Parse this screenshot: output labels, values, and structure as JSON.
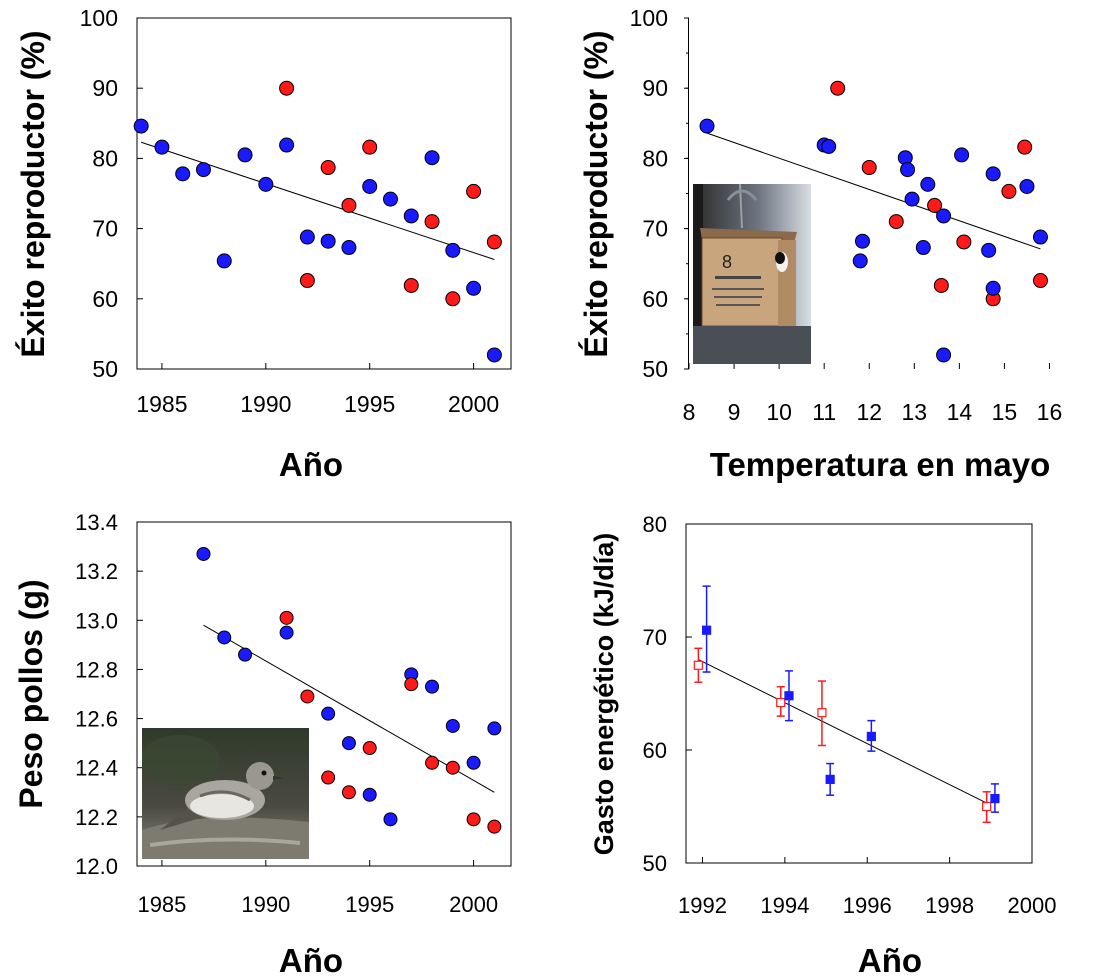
{
  "chart_data": [
    {
      "type": "scatter",
      "xlabel": "Año",
      "ylabel": "Éxito reproductor (%)",
      "xlim": [
        1983.8,
        2001.8
      ],
      "ylim": [
        50,
        100
      ],
      "xticks": [
        1985,
        1990,
        1995,
        2000
      ],
      "yticks": [
        50,
        60,
        70,
        80,
        90,
        100
      ],
      "colors": {
        "blue": "#1a1aff",
        "red": "#ff1a1a"
      },
      "points": [
        {
          "x": 1984,
          "y": 84.6,
          "c": "blue"
        },
        {
          "x": 1985,
          "y": 81.6,
          "c": "blue"
        },
        {
          "x": 1986,
          "y": 77.8,
          "c": "blue"
        },
        {
          "x": 1987,
          "y": 78.4,
          "c": "blue"
        },
        {
          "x": 1988,
          "y": 65.4,
          "c": "blue"
        },
        {
          "x": 1989,
          "y": 80.5,
          "c": "blue"
        },
        {
          "x": 1990,
          "y": 76.3,
          "c": "blue"
        },
        {
          "x": 1991,
          "y": 81.9,
          "c": "blue"
        },
        {
          "x": 1991,
          "y": 90.0,
          "c": "red"
        },
        {
          "x": 1992,
          "y": 68.8,
          "c": "blue"
        },
        {
          "x": 1992,
          "y": 62.6,
          "c": "red"
        },
        {
          "x": 1993,
          "y": 68.2,
          "c": "blue"
        },
        {
          "x": 1993,
          "y": 78.7,
          "c": "red"
        },
        {
          "x": 1994,
          "y": 67.3,
          "c": "blue"
        },
        {
          "x": 1994,
          "y": 73.3,
          "c": "red"
        },
        {
          "x": 1995,
          "y": 76.0,
          "c": "blue"
        },
        {
          "x": 1995,
          "y": 81.6,
          "c": "red"
        },
        {
          "x": 1996,
          "y": 74.2,
          "c": "blue"
        },
        {
          "x": 1997,
          "y": 71.8,
          "c": "blue"
        },
        {
          "x": 1997,
          "y": 61.9,
          "c": "red"
        },
        {
          "x": 1998,
          "y": 80.1,
          "c": "blue"
        },
        {
          "x": 1998,
          "y": 71.0,
          "c": "red"
        },
        {
          "x": 1999,
          "y": 66.9,
          "c": "blue"
        },
        {
          "x": 1999,
          "y": 60.0,
          "c": "red"
        },
        {
          "x": 2000,
          "y": 61.5,
          "c": "blue"
        },
        {
          "x": 2000,
          "y": 75.3,
          "c": "red"
        },
        {
          "x": 2001,
          "y": 52.0,
          "c": "blue"
        },
        {
          "x": 2001,
          "y": 68.1,
          "c": "red"
        }
      ],
      "trendline": [
        [
          1984,
          82.3
        ],
        [
          2001,
          65.6
        ]
      ]
    },
    {
      "type": "scatter",
      "xlabel": "Temperatura en mayo",
      "ylabel": "Éxito reproductor (%)",
      "xlim": [
        8,
        16.3
      ],
      "ylim": [
        50,
        100
      ],
      "xticks": [
        8,
        9,
        10,
        11,
        12,
        13,
        14,
        15,
        16
      ],
      "yticks": [
        50,
        60,
        70,
        80,
        90,
        100
      ],
      "inset_photo": "nest-box-with-bird",
      "colors": {
        "blue": "#1a1aff",
        "red": "#ff1a1a"
      },
      "points": [
        {
          "x": 8.4,
          "y": 84.6,
          "c": "blue"
        },
        {
          "x": 11.0,
          "y": 81.9,
          "c": "blue"
        },
        {
          "x": 11.1,
          "y": 81.7,
          "c": "blue"
        },
        {
          "x": 11.3,
          "y": 90.0,
          "c": "red"
        },
        {
          "x": 11.8,
          "y": 65.4,
          "c": "blue"
        },
        {
          "x": 11.85,
          "y": 68.2,
          "c": "blue"
        },
        {
          "x": 12.0,
          "y": 78.7,
          "c": "red"
        },
        {
          "x": 12.6,
          "y": 71.0,
          "c": "red"
        },
        {
          "x": 12.8,
          "y": 80.1,
          "c": "blue"
        },
        {
          "x": 12.85,
          "y": 78.4,
          "c": "blue"
        },
        {
          "x": 12.95,
          "y": 74.2,
          "c": "blue"
        },
        {
          "x": 13.2,
          "y": 67.3,
          "c": "blue"
        },
        {
          "x": 13.3,
          "y": 76.3,
          "c": "blue"
        },
        {
          "x": 13.45,
          "y": 73.3,
          "c": "red"
        },
        {
          "x": 13.6,
          "y": 61.9,
          "c": "red"
        },
        {
          "x": 13.65,
          "y": 71.8,
          "c": "blue"
        },
        {
          "x": 13.65,
          "y": 52.0,
          "c": "blue"
        },
        {
          "x": 14.05,
          "y": 80.5,
          "c": "blue"
        },
        {
          "x": 14.1,
          "y": 68.1,
          "c": "red"
        },
        {
          "x": 14.65,
          "y": 66.9,
          "c": "blue"
        },
        {
          "x": 14.75,
          "y": 60.0,
          "c": "red"
        },
        {
          "x": 14.75,
          "y": 61.5,
          "c": "blue"
        },
        {
          "x": 14.75,
          "y": 77.8,
          "c": "blue"
        },
        {
          "x": 15.1,
          "y": 75.3,
          "c": "red"
        },
        {
          "x": 15.45,
          "y": 81.6,
          "c": "red"
        },
        {
          "x": 15.5,
          "y": 76.0,
          "c": "blue"
        },
        {
          "x": 15.8,
          "y": 68.8,
          "c": "blue"
        },
        {
          "x": 15.8,
          "y": 62.6,
          "c": "red"
        }
      ],
      "trendline": [
        [
          8.4,
          83.6
        ],
        [
          15.8,
          67.1
        ]
      ]
    },
    {
      "type": "scatter",
      "xlabel": "Año",
      "ylabel": "Peso pollos (g)",
      "xlim": [
        1983.8,
        2001.8
      ],
      "ylim": [
        12.0,
        13.4
      ],
      "xticks": [
        1985,
        1990,
        1995,
        2000
      ],
      "yticks": [
        "12.0",
        "12.2",
        "12.4",
        "12.6",
        "12.8",
        "13.0",
        "13.2",
        "13.4"
      ],
      "inset_photo": "flycatcher-bird",
      "colors": {
        "blue": "#1a1aff",
        "red": "#ff1a1a"
      },
      "points": [
        {
          "x": 1987,
          "y": 13.27,
          "c": "blue"
        },
        {
          "x": 1988,
          "y": 12.93,
          "c": "blue"
        },
        {
          "x": 1989,
          "y": 12.86,
          "c": "blue"
        },
        {
          "x": 1991,
          "y": 13.01,
          "c": "red"
        },
        {
          "x": 1991,
          "y": 12.95,
          "c": "blue"
        },
        {
          "x": 1992,
          "y": 12.69,
          "c": "red"
        },
        {
          "x": 1993,
          "y": 12.62,
          "c": "blue"
        },
        {
          "x": 1993,
          "y": 12.36,
          "c": "red"
        },
        {
          "x": 1994,
          "y": 12.5,
          "c": "blue"
        },
        {
          "x": 1994,
          "y": 12.3,
          "c": "red"
        },
        {
          "x": 1995,
          "y": 12.48,
          "c": "red"
        },
        {
          "x": 1995,
          "y": 12.29,
          "c": "blue"
        },
        {
          "x": 1996,
          "y": 12.19,
          "c": "blue"
        },
        {
          "x": 1997,
          "y": 12.78,
          "c": "blue"
        },
        {
          "x": 1997,
          "y": 12.74,
          "c": "red"
        },
        {
          "x": 1998,
          "y": 12.73,
          "c": "blue"
        },
        {
          "x": 1998,
          "y": 12.42,
          "c": "red"
        },
        {
          "x": 1999,
          "y": 12.57,
          "c": "blue"
        },
        {
          "x": 1999,
          "y": 12.4,
          "c": "red"
        },
        {
          "x": 2000,
          "y": 12.42,
          "c": "blue"
        },
        {
          "x": 2000,
          "y": 12.19,
          "c": "red"
        },
        {
          "x": 2001,
          "y": 12.56,
          "c": "blue"
        },
        {
          "x": 2001,
          "y": 12.16,
          "c": "red"
        }
      ],
      "trendline": [
        [
          1987,
          12.98
        ],
        [
          2001,
          12.3
        ]
      ]
    },
    {
      "type": "scatter",
      "xlabel": "Año",
      "ylabel": "Gasto energético (kJ/día)",
      "xlim": [
        1991.6,
        2000
      ],
      "ylim": [
        50,
        80
      ],
      "xticks": [
        1992,
        1994,
        1996,
        1998,
        2000
      ],
      "yticks": [
        50,
        60,
        70,
        80
      ],
      "colors": {
        "blue": "#1a1aff",
        "red": "#ff1a1a"
      },
      "points": [
        {
          "x": 1991.9,
          "y": 67.5,
          "lo": 66.0,
          "hi": 69.0,
          "c": "red",
          "marker": "open-square"
        },
        {
          "x": 1992.1,
          "y": 70.6,
          "lo": 66.9,
          "hi": 74.5,
          "c": "blue",
          "marker": "filled-square"
        },
        {
          "x": 1993.9,
          "y": 64.2,
          "lo": 63.0,
          "hi": 65.6,
          "c": "red",
          "marker": "open-square"
        },
        {
          "x": 1994.1,
          "y": 64.8,
          "lo": 62.6,
          "hi": 67.0,
          "c": "blue",
          "marker": "filled-square"
        },
        {
          "x": 1994.9,
          "y": 63.3,
          "lo": 60.4,
          "hi": 66.1,
          "c": "red",
          "marker": "open-square"
        },
        {
          "x": 1995.1,
          "y": 57.4,
          "lo": 56.0,
          "hi": 58.8,
          "c": "blue",
          "marker": "filled-square"
        },
        {
          "x": 1996.1,
          "y": 61.2,
          "lo": 59.9,
          "hi": 62.6,
          "c": "blue",
          "marker": "filled-square"
        },
        {
          "x": 1998.9,
          "y": 55.0,
          "lo": 53.6,
          "hi": 56.3,
          "c": "red",
          "marker": "open-square"
        },
        {
          "x": 1999.1,
          "y": 55.7,
          "lo": 54.5,
          "hi": 57.0,
          "c": "blue",
          "marker": "filled-square"
        }
      ],
      "trendline": [
        [
          1991.9,
          68.0
        ],
        [
          1998.9,
          55.3
        ]
      ]
    }
  ]
}
